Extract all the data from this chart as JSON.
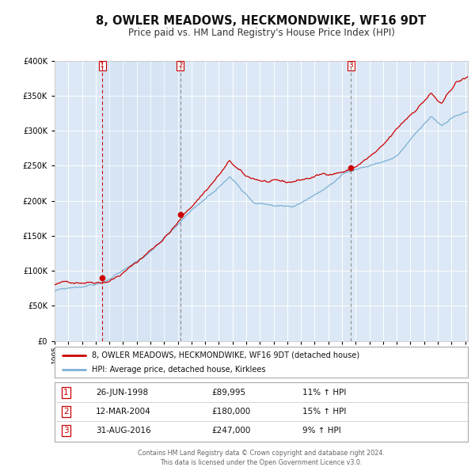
{
  "title": "8, OWLER MEADOWS, HECKMONDWIKE, WF16 9DT",
  "subtitle": "Price paid vs. HM Land Registry's House Price Index (HPI)",
  "title_fontsize": 10.5,
  "subtitle_fontsize": 8.5,
  "bg_color": "#ffffff",
  "plot_bg_color": "#dce8f5",
  "grid_color": "#ffffff",
  "red_line_color": "#cc0000",
  "blue_line_color": "#7ab0d4",
  "sale_marker_color": "#cc0000",
  "sales": [
    {
      "date_year": 1998.49,
      "price": 89995,
      "label": "1",
      "vline_color": "#cc0000"
    },
    {
      "date_year": 2004.19,
      "price": 180000,
      "label": "2",
      "vline_color": "#888888"
    },
    {
      "date_year": 2016.66,
      "price": 247000,
      "label": "3",
      "vline_color": "#888888"
    }
  ],
  "legend_entries": [
    {
      "label": "8, OWLER MEADOWS, HECKMONDWIKE, WF16 9DT (detached house)",
      "color": "#cc0000"
    },
    {
      "label": "HPI: Average price, detached house, Kirklees",
      "color": "#7ab0d4"
    }
  ],
  "table_rows": [
    {
      "num": "1",
      "date": "26-JUN-1998",
      "price": "£89,995",
      "hpi": "11% ↑ HPI"
    },
    {
      "num": "2",
      "date": "12-MAR-2004",
      "price": "£180,000",
      "hpi": "15% ↑ HPI"
    },
    {
      "num": "3",
      "date": "31-AUG-2016",
      "price": "£247,000",
      "hpi": "9% ↑ HPI"
    }
  ],
  "footer_line1": "Contains HM Land Registry data © Crown copyright and database right 2024.",
  "footer_line2": "This data is licensed under the Open Government Licence v3.0.",
  "ylim": [
    0,
    400000
  ],
  "yticks": [
    0,
    50000,
    100000,
    150000,
    200000,
    250000,
    300000,
    350000,
    400000
  ],
  "xlim_start": 1995.0,
  "xlim_end": 2025.2
}
